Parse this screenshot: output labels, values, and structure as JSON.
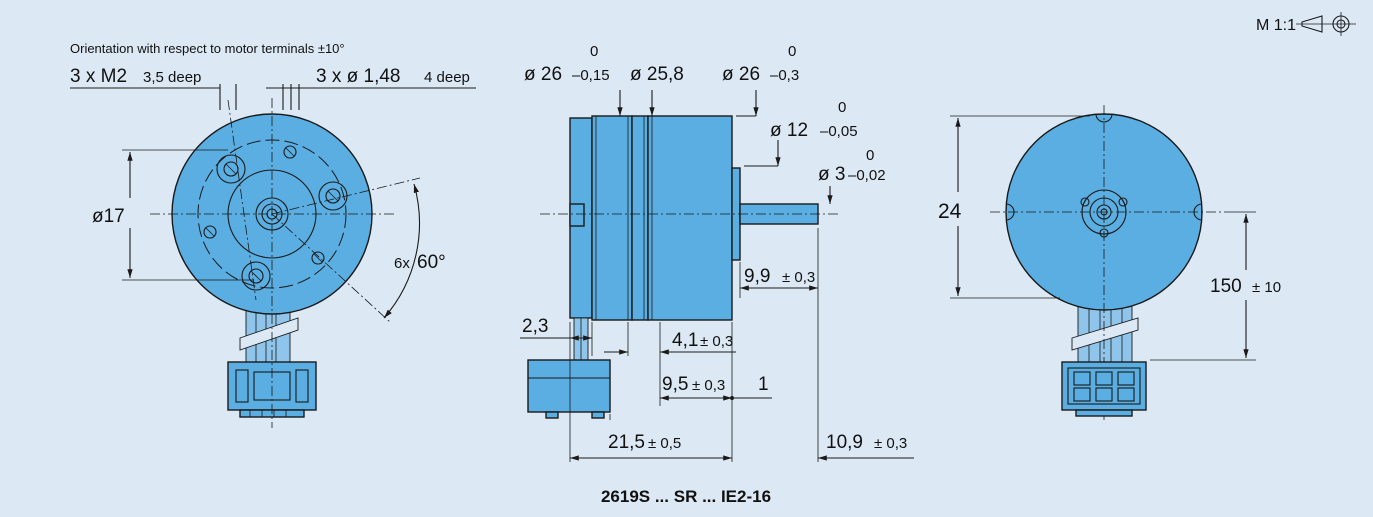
{
  "scale": "M 1:1",
  "note_orientation": "Orientation with respect to motor terminals ±10°",
  "front_view": {
    "holes_m2": "3 x M2",
    "holes_m2_depth": "3,5 deep",
    "holes_d148": "3 x ø 1,48",
    "holes_d148_depth": "4 deep",
    "bolt_circle": "ø17",
    "angle_mult": "6x",
    "angle": "60°"
  },
  "side_view": {
    "d1": "ø 26",
    "d1_tol_upper": "0",
    "d1_tol_lower": "–0,15",
    "d2": "ø 25,8",
    "d3": "ø 26",
    "d3_tol_upper": "0",
    "d3_tol_lower": "–0,3",
    "d4": "ø 12",
    "d4_tol_upper": "0",
    "d4_tol_lower": "–0,05",
    "d5": "ø 3",
    "d5_tol_upper": "0",
    "d5_tol_lower": "–0,02",
    "len_shaft": "9,9",
    "len_shaft_tol": "± 0,3",
    "len_flange": "2,3",
    "len_a": "4,1",
    "len_a_tol": "± 0,3",
    "len_b": "9,5",
    "len_b_tol": "± 0,3",
    "len_c": "1",
    "len_total": "21,5",
    "len_total_tol": "± 0,5",
    "len_end": "10,9",
    "len_end_tol": "± 0,3"
  },
  "rear_view": {
    "height": "24",
    "cable_len": "150",
    "cable_len_tol": "± 10"
  },
  "caption": "2619S ... SR ... IE2-16",
  "colors": {
    "background": "#dce9f5",
    "motor_body": "#5aaee2",
    "line": "#1a1a1a"
  }
}
